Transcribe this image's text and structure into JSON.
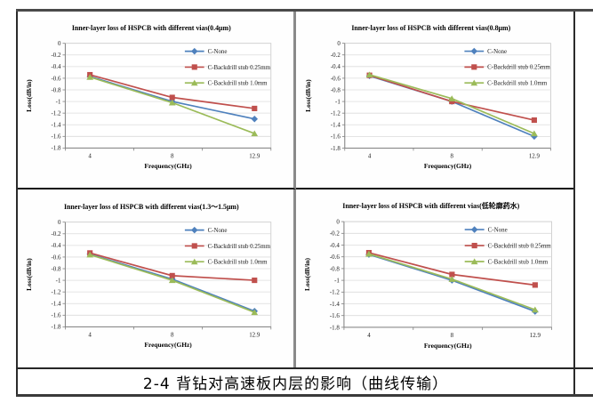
{
  "caption": "2-4 背钻对高速板内层的影响（曲线传输）",
  "chart_style": {
    "plot_border_color": "#c6c6c6",
    "grid_color": "#dcdcdc",
    "axis_color": "#808080",
    "text_color": "#1a1a1a",
    "background": "#ffffff"
  },
  "chart_data": [
    {
      "type": "line",
      "title": "Inner-layer loss of HSPCB with different vias(0.4μm)",
      "xlabel": "Frequency(GHz)",
      "ylabel": "Loss(dB/in)",
      "categories": [
        "4",
        "8",
        "12.9"
      ],
      "ylim": [
        -1.8,
        0
      ],
      "ytick_labels": [
        "0",
        "-0.2",
        "-0.4",
        "-0.6",
        "-0.8",
        "-1",
        "-1.2",
        "-1.4",
        "-1.6",
        "-1.8"
      ],
      "grid": true,
      "legend_position": "inside-top-right",
      "series": [
        {
          "name": "C-None",
          "color": "#4F81BD",
          "marker": "diamond",
          "values": [
            -0.57,
            -1.0,
            -1.3
          ]
        },
        {
          "name": "C-Backdrill stub 0.25mm",
          "color": "#C0504D",
          "marker": "square",
          "values": [
            -0.54,
            -0.93,
            -1.12
          ]
        },
        {
          "name": "C-Backdrill stub 1.0mm",
          "color": "#9BBB59",
          "marker": "triangle",
          "values": [
            -0.58,
            -1.02,
            -1.55
          ]
        }
      ]
    },
    {
      "type": "line",
      "title": "Inner-layer loss of HSPCB with different vias(0.8μm)",
      "xlabel": "Frequency(GHz)",
      "ylabel": "Loss(dB/in)",
      "categories": [
        "4",
        "8",
        "12.9"
      ],
      "ylim": [
        -1.8,
        0
      ],
      "ytick_labels": [
        "0",
        "-0.2",
        "-0.4",
        "-0.6",
        "-0.8",
        "-1",
        "-1.2",
        "-1.4",
        "-1.6",
        "-1.8"
      ],
      "grid": true,
      "legend_position": "inside-top-right",
      "series": [
        {
          "name": "C-None",
          "color": "#4F81BD",
          "marker": "diamond",
          "values": [
            -0.56,
            -1.0,
            -1.6
          ]
        },
        {
          "name": "C-Backdrill stub 0.25mm",
          "color": "#C0504D",
          "marker": "square",
          "values": [
            -0.55,
            -1.0,
            -1.32
          ]
        },
        {
          "name": "C-Backdrill stub 1.0mm",
          "color": "#9BBB59",
          "marker": "triangle",
          "values": [
            -0.54,
            -0.95,
            -1.55
          ]
        }
      ]
    },
    {
      "type": "line",
      "title": "Inner-layer loss of HSPCB with different vias(1.3～1.5μm)",
      "xlabel": "Frequency(GHz)",
      "ylabel": "Loss(dB/in)",
      "categories": [
        "4",
        "8",
        "12.9"
      ],
      "ylim": [
        -1.8,
        0
      ],
      "ytick_labels": [
        "0",
        "-0.2",
        "-0.4",
        "-0.6",
        "-0.8",
        "-1",
        "-1.2",
        "-1.4",
        "-1.6",
        "-1.8"
      ],
      "grid": true,
      "legend_position": "inside-top-right",
      "series": [
        {
          "name": "C-None",
          "color": "#4F81BD",
          "marker": "diamond",
          "values": [
            -0.55,
            -0.98,
            -1.53
          ]
        },
        {
          "name": "C-Backdrill stub 0.25mm",
          "color": "#C0504D",
          "marker": "square",
          "values": [
            -0.53,
            -0.92,
            -1.0
          ]
        },
        {
          "name": "C-Backdrill stub 1.0mm",
          "color": "#9BBB59",
          "marker": "triangle",
          "values": [
            -0.56,
            -1.0,
            -1.55
          ]
        }
      ]
    },
    {
      "type": "line",
      "title": "Inner-layer loss of HSPCB with different vias(低轮廓药水)",
      "xlabel": "Frequency(GHz)",
      "ylabel": "Loss(dB/in)",
      "categories": [
        "4",
        "8",
        "12.9"
      ],
      "ylim": [
        -1.8,
        0
      ],
      "ytick_labels": [
        "0",
        "-0.2",
        "-0.4",
        "-0.6",
        "-0.8",
        "-1",
        "-1.2",
        "-1.4",
        "-1.6",
        "-1.8"
      ],
      "grid": true,
      "legend_position": "inside-top-right",
      "series": [
        {
          "name": "C-None",
          "color": "#4F81BD",
          "marker": "diamond",
          "values": [
            -0.56,
            -1.0,
            -1.53
          ]
        },
        {
          "name": "C-Backdrill stub 0.25mm",
          "color": "#C0504D",
          "marker": "square",
          "values": [
            -0.53,
            -0.9,
            -1.08
          ]
        },
        {
          "name": "C-Backdrill stub 1.0mm",
          "color": "#9BBB59",
          "marker": "triangle",
          "values": [
            -0.55,
            -0.98,
            -1.5
          ]
        }
      ]
    }
  ]
}
